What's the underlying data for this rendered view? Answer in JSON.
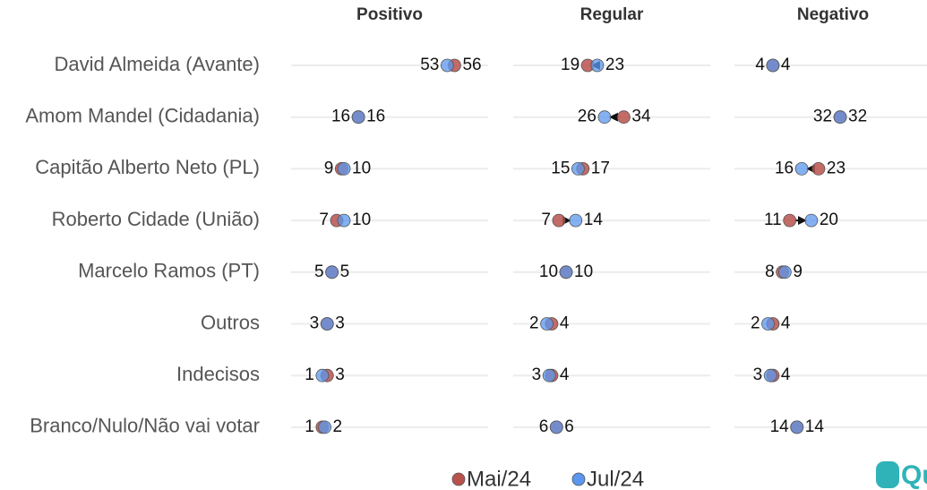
{
  "chart_data": {
    "type": "dumbbell",
    "categories": [
      "David Almeida (Avante)",
      "Amom Mandel (Cidadania)",
      "Capitão Alberto Neto (PL)",
      "Roberto Cidade (União)",
      "Marcelo Ramos (PT)",
      "Outros",
      "Indecisos",
      "Branco/Nulo/Não vai votar"
    ],
    "series": [
      {
        "name": "Mai/24",
        "color": "#b9524d"
      },
      {
        "name": "Jul/24",
        "color": "#5b97ee"
      }
    ],
    "xlim": [
      -12,
      70
    ],
    "panels": [
      {
        "title": "Positivo",
        "series": [
          {
            "values": [
              56,
              16,
              9,
              7,
              5,
              3,
              3,
              1
            ]
          },
          {
            "values": [
              53,
              16,
              10,
              10,
              5,
              3,
              1,
              2
            ]
          }
        ]
      },
      {
        "title": "Regular",
        "series": [
          {
            "values": [
              19,
              34,
              17,
              7,
              10,
              4,
              4,
              6
            ]
          },
          {
            "values": [
              23,
              26,
              15,
              14,
              10,
              2,
              3,
              6
            ]
          }
        ]
      },
      {
        "title": "Negativo",
        "series": [
          {
            "values": [
              4,
              32,
              23,
              11,
              8,
              4,
              4,
              14
            ]
          },
          {
            "values": [
              4,
              32,
              16,
              20,
              9,
              2,
              3,
              14
            ]
          }
        ]
      }
    ],
    "brand": "Qua"
  }
}
